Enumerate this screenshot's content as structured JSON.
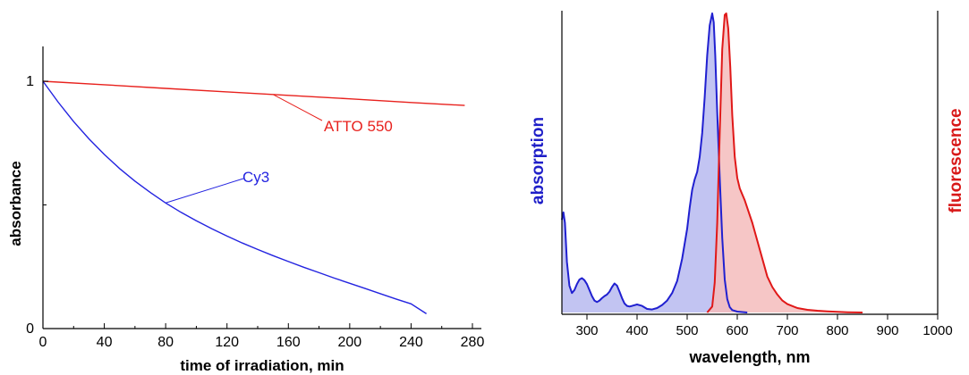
{
  "chart_data": [
    {
      "type": "line",
      "title": "",
      "xlabel": "time of irradiation, min",
      "ylabel": "absorbance",
      "xlim": [
        0,
        280
      ],
      "ylim": [
        0,
        1.1
      ],
      "x_ticks": [
        "0",
        "40",
        "80",
        "120",
        "160",
        "200",
        "240",
        "280"
      ],
      "y_ticks": [
        "0",
        "1"
      ],
      "grid": false,
      "legend": "none",
      "series": [
        {
          "name": "ATTO 550",
          "color": "#e8211d",
          "x": [
            0,
            40,
            80,
            120,
            160,
            200,
            240,
            275
          ],
          "y": [
            1.0,
            0.986,
            0.971,
            0.957,
            0.943,
            0.929,
            0.914,
            0.902
          ]
        },
        {
          "name": "Cy3",
          "color": "#2323e0",
          "x": [
            0,
            10,
            20,
            30,
            40,
            50,
            60,
            70,
            80,
            90,
            100,
            110,
            120,
            130,
            140,
            150,
            160,
            170,
            180,
            190,
            200,
            210,
            220,
            230,
            240,
            250
          ],
          "y": [
            1.0,
            0.915,
            0.837,
            0.767,
            0.704,
            0.647,
            0.596,
            0.55,
            0.508,
            0.47,
            0.436,
            0.404,
            0.374,
            0.346,
            0.32,
            0.295,
            0.271,
            0.248,
            0.226,
            0.204,
            0.183,
            0.162,
            0.141,
            0.12,
            0.1,
            0.06
          ]
        }
      ],
      "annotations": [
        {
          "text": "ATTO 550",
          "series": "ATTO 550",
          "color": "#e8211d"
        },
        {
          "text": "Cy3",
          "series": "Cy3",
          "color": "#2323e0"
        }
      ]
    },
    {
      "type": "area",
      "title": "",
      "xlabel": "wavelength, nm",
      "ylabel_left": "absorption",
      "ylabel_right": "fluorescence",
      "xlim": [
        250,
        1000
      ],
      "ylim": [
        0,
        1.0
      ],
      "x_ticks": [
        "300",
        "400",
        "500",
        "600",
        "700",
        "800",
        "900",
        "1000"
      ],
      "grid": false,
      "legend": "none",
      "series": [
        {
          "name": "absorption",
          "color": "#2020d0",
          "fill": "#c2c4f2",
          "x": [
            250,
            253,
            256,
            260,
            265,
            270,
            275,
            280,
            285,
            290,
            295,
            300,
            305,
            310,
            315,
            320,
            325,
            330,
            335,
            340,
            345,
            350,
            355,
            360,
            365,
            370,
            375,
            380,
            385,
            390,
            400,
            410,
            420,
            430,
            440,
            450,
            460,
            470,
            480,
            490,
            500,
            505,
            510,
            515,
            520,
            525,
            530,
            535,
            540,
            545,
            550,
            553,
            556,
            560,
            565,
            570,
            575,
            580,
            585,
            590,
            600,
            620
          ],
          "y": [
            0.31,
            0.335,
            0.3,
            0.17,
            0.09,
            0.065,
            0.075,
            0.095,
            0.11,
            0.115,
            0.108,
            0.095,
            0.075,
            0.055,
            0.04,
            0.035,
            0.04,
            0.048,
            0.055,
            0.06,
            0.07,
            0.085,
            0.097,
            0.09,
            0.07,
            0.048,
            0.03,
            0.022,
            0.02,
            0.022,
            0.027,
            0.022,
            0.012,
            0.01,
            0.015,
            0.025,
            0.04,
            0.065,
            0.105,
            0.18,
            0.28,
            0.35,
            0.41,
            0.445,
            0.47,
            0.52,
            0.6,
            0.72,
            0.86,
            0.96,
            1.0,
            0.97,
            0.86,
            0.67,
            0.45,
            0.25,
            0.11,
            0.045,
            0.018,
            0.008,
            0.003,
            0.0
          ]
        },
        {
          "name": "fluorescence",
          "color": "#e01818",
          "fill": "#f5bcbc",
          "x": [
            540,
            550,
            555,
            560,
            565,
            570,
            575,
            578,
            582,
            586,
            590,
            595,
            600,
            605,
            610,
            615,
            620,
            630,
            640,
            650,
            660,
            670,
            680,
            690,
            700,
            720,
            740,
            760,
            780,
            800,
            820,
            850
          ],
          "y": [
            0.0,
            0.02,
            0.1,
            0.3,
            0.6,
            0.88,
            0.995,
            1.0,
            0.95,
            0.82,
            0.66,
            0.52,
            0.45,
            0.415,
            0.395,
            0.375,
            0.35,
            0.3,
            0.24,
            0.18,
            0.12,
            0.085,
            0.06,
            0.04,
            0.028,
            0.015,
            0.009,
            0.006,
            0.004,
            0.002,
            0.001,
            0.0
          ]
        }
      ]
    }
  ]
}
